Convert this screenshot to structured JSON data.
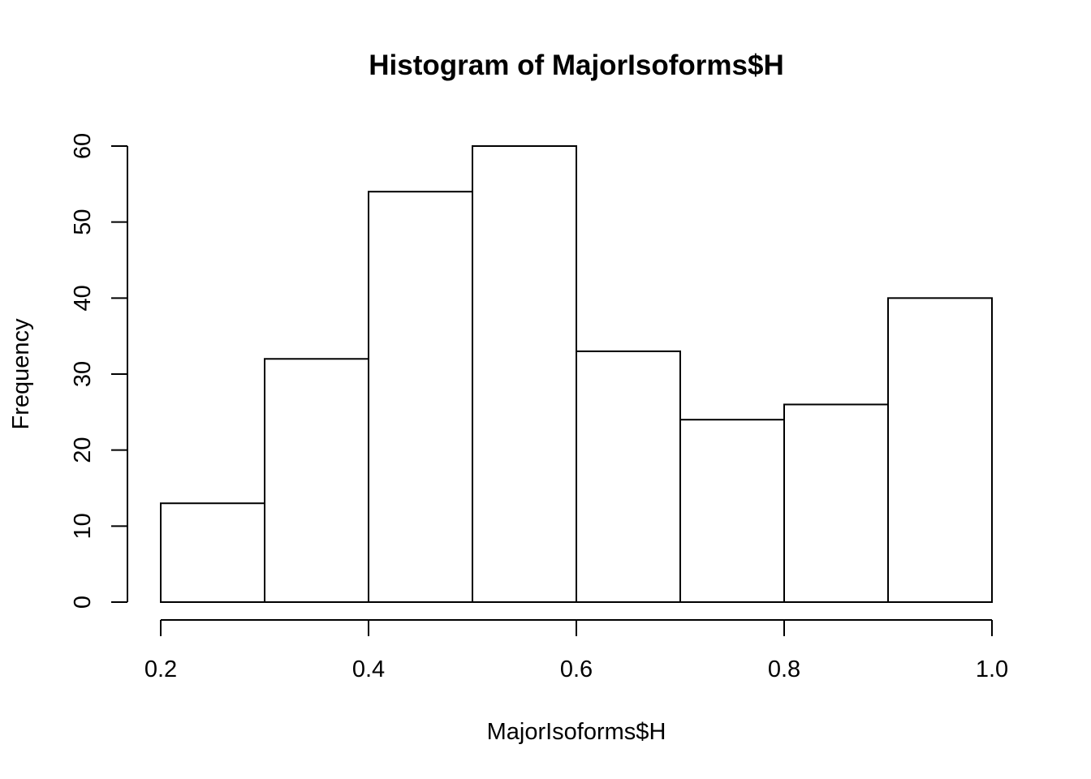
{
  "chart_data": {
    "type": "bar",
    "title": "Histogram of MajorIsoforms$H",
    "xlabel": "MajorIsoforms$H",
    "ylabel": "Frequency",
    "bins": [
      {
        "from": 0.2,
        "to": 0.3,
        "count": 13
      },
      {
        "from": 0.3,
        "to": 0.4,
        "count": 32
      },
      {
        "from": 0.4,
        "to": 0.5,
        "count": 54
      },
      {
        "from": 0.5,
        "to": 0.6,
        "count": 60
      },
      {
        "from": 0.6,
        "to": 0.7,
        "count": 33
      },
      {
        "from": 0.7,
        "to": 0.8,
        "count": 24
      },
      {
        "from": 0.8,
        "to": 0.9,
        "count": 26
      },
      {
        "from": 0.9,
        "to": 1.0,
        "count": 40
      }
    ],
    "xlim": [
      0.2,
      1.0
    ],
    "ylim": [
      0,
      60
    ],
    "x_ticks": [
      "0.2",
      "0.4",
      "0.6",
      "0.8",
      "1.0"
    ],
    "y_ticks": [
      "0",
      "10",
      "20",
      "30",
      "40",
      "50",
      "60"
    ],
    "grid": false,
    "colors": {
      "fill": "#ffffff",
      "stroke": "#000000"
    }
  }
}
